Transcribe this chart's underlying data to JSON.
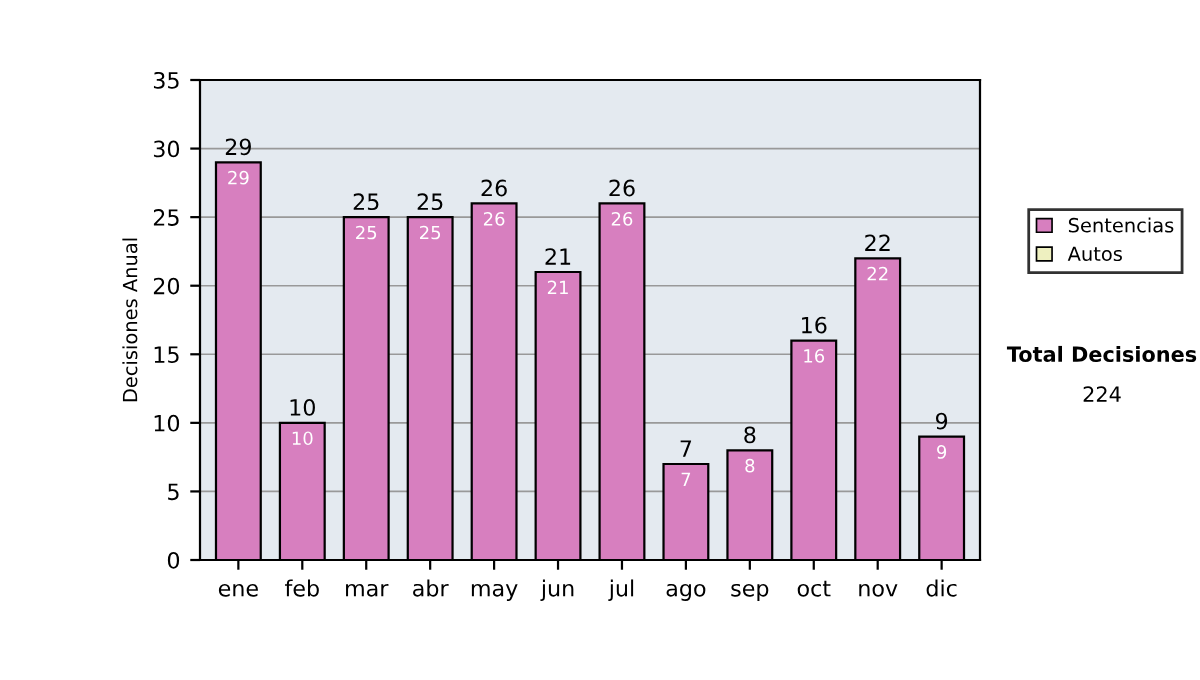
{
  "chart_data": {
    "type": "bar",
    "ylabel": "Decisiones Anual",
    "categories": [
      "ene",
      "feb",
      "mar",
      "abr",
      "may",
      "jun",
      "jul",
      "ago",
      "sep",
      "oct",
      "nov",
      "dic"
    ],
    "series": [
      {
        "name": "Sentencias",
        "color": "#d77fbf",
        "values": [
          29,
          10,
          25,
          25,
          26,
          21,
          26,
          7,
          8,
          16,
          22,
          9
        ],
        "value_labels": [
          "29",
          "10",
          "25",
          "25",
          "26",
          "21",
          "26",
          "7",
          "8",
          "16",
          "22",
          "9"
        ]
      },
      {
        "name": "Autos",
        "color": "#eef0c0",
        "values": [
          0,
          0,
          0,
          0,
          0,
          0,
          0,
          0,
          0,
          0,
          0,
          0
        ]
      }
    ],
    "stacked": true,
    "totals": [
      "29",
      "10",
      "25",
      "25",
      "26",
      "21",
      "26",
      "7",
      "8",
      "16",
      "22",
      "9"
    ],
    "ylim": [
      0,
      35
    ],
    "yticks": [
      0,
      5,
      10,
      15,
      20,
      25,
      30,
      35
    ],
    "grid": "y",
    "legend": "right",
    "annotations": [
      "Total Decisiones",
      "224"
    ]
  }
}
